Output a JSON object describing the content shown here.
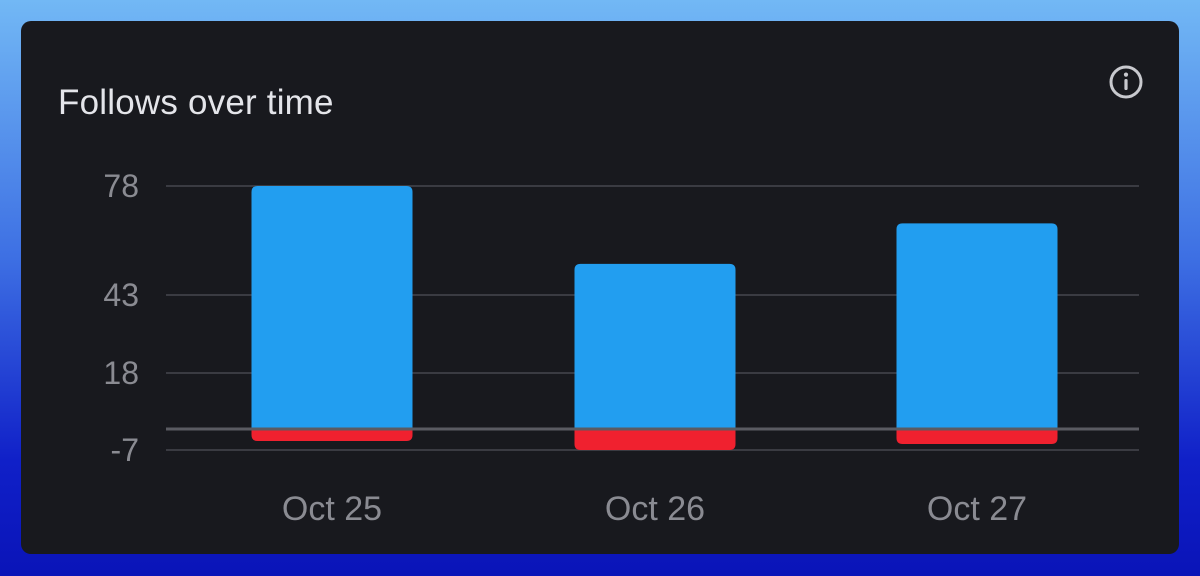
{
  "card": {
    "title": "Follows over time"
  },
  "icons": {
    "info": "info-icon"
  },
  "colors": {
    "follows": "#229ef0",
    "unfollows": "#f0212f",
    "grid": "#3a3b42",
    "zero": "#5a5b62"
  },
  "chart_data": {
    "type": "bar",
    "title": "Follows over time",
    "categories": [
      "Oct 25",
      "Oct 26",
      "Oct 27"
    ],
    "series": [
      {
        "values": [
          78,
          53,
          66
        ]
      },
      {
        "values": [
          -4,
          -7,
          -5
        ]
      }
    ],
    "stacked": true,
    "yticks": [
      78,
      43,
      18,
      -7
    ],
    "ylim": [
      -7,
      78
    ],
    "grid": true,
    "legend": "none"
  }
}
